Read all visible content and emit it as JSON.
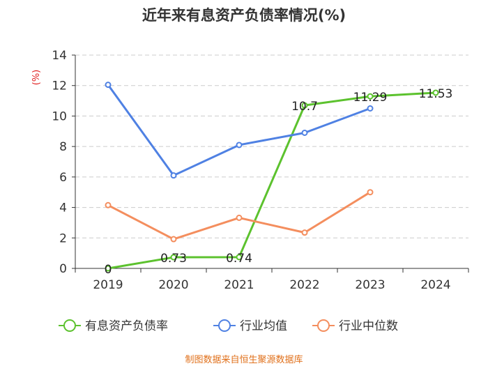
{
  "chart_data": {
    "type": "line",
    "title": "近年来有息资产负债率情况(%)",
    "ylabel": "(%)",
    "xlabel": "",
    "categories": [
      "2019",
      "2020",
      "2021",
      "2022",
      "2023",
      "2024"
    ],
    "ylim": [
      0,
      14
    ],
    "yticks": [
      0,
      2,
      4,
      6,
      8,
      10,
      12,
      14
    ],
    "grid": true,
    "legend_position": "bottom",
    "series": [
      {
        "name": "有息资产负债率",
        "color": "#5cc22e",
        "values": [
          0,
          0.73,
          0.74,
          10.7,
          11.29,
          11.53
        ],
        "labels": [
          "0",
          "0.73",
          "0.74",
          "10.7",
          "11.29",
          "11.53"
        ],
        "show_labels": true
      },
      {
        "name": "行业均值",
        "color": "#4f81e3",
        "values": [
          12.05,
          6.1,
          8.1,
          8.9,
          10.5,
          null
        ],
        "show_labels": false
      },
      {
        "name": "行业中位数",
        "color": "#f48e5e",
        "values": [
          4.15,
          1.92,
          3.32,
          2.35,
          5.0,
          null
        ],
        "show_labels": false
      }
    ],
    "source": "制图数据来自恒生聚源数据库"
  }
}
